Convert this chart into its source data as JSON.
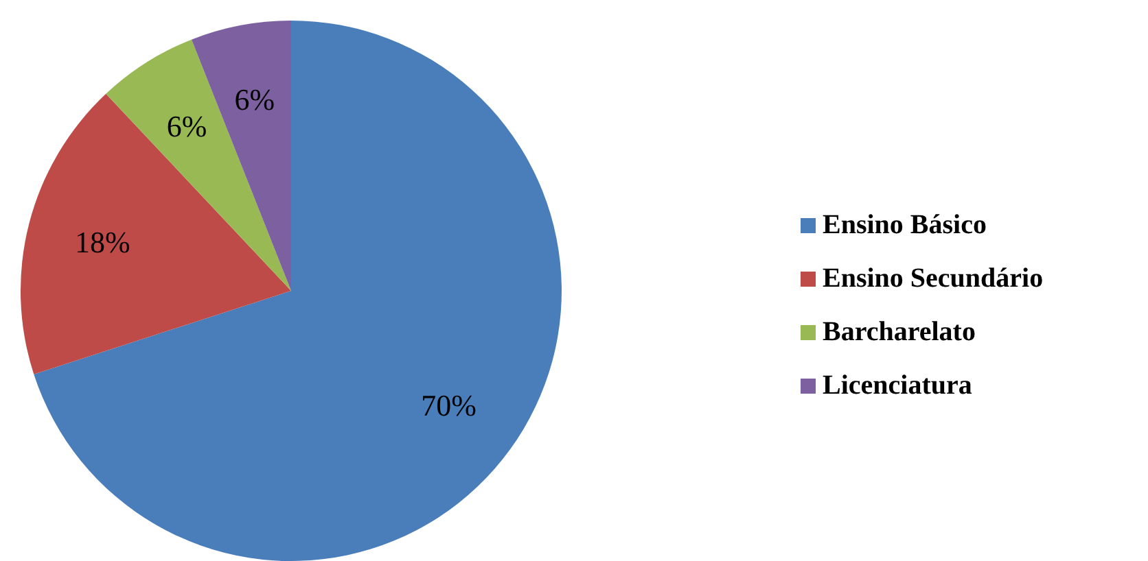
{
  "chart_data": {
    "type": "pie",
    "categories": [
      "Ensino Básico",
      "Ensino Secundário",
      "Barcharelato",
      "Licenciatura"
    ],
    "values": [
      70,
      18,
      6,
      6
    ],
    "colors": [
      "#4a7ebb",
      "#be4b48",
      "#98b954",
      "#7d60a0"
    ],
    "value_labels": [
      "70%",
      "18%",
      "6%",
      "6%"
    ],
    "legend": "right"
  }
}
